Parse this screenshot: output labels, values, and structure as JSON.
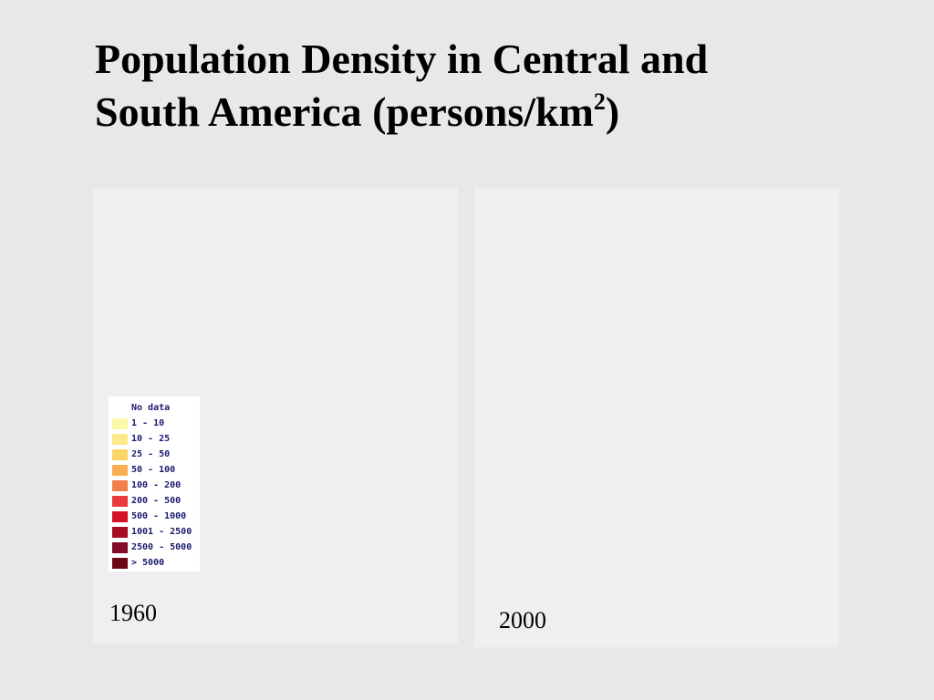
{
  "title": {
    "line1": "Population Density in Central and",
    "line2_prefix": "South America (persons/km",
    "superscript": "2",
    "line2_suffix": ")"
  },
  "panels": [
    {
      "year": "1960"
    },
    {
      "year": "2000"
    }
  ],
  "legend": {
    "items": [
      {
        "label": "No data",
        "color": "#ffffff"
      },
      {
        "label": "1 - 10",
        "color": "#fdf7a8"
      },
      {
        "label": "10 - 25",
        "color": "#fde98a"
      },
      {
        "label": "25 - 50",
        "color": "#fdd565"
      },
      {
        "label": "50 - 100",
        "color": "#f9ae52"
      },
      {
        "label": "100 - 200",
        "color": "#f27f4a"
      },
      {
        "label": "200 - 500",
        "color": "#ea3c3c"
      },
      {
        "label": "500 - 1000",
        "color": "#d41426"
      },
      {
        "label": "1001 - 2500",
        "color": "#a90f22"
      },
      {
        "label": "2500 - 5000",
        "color": "#820c2a"
      },
      {
        "label": "> 5000",
        "color": "#6b0a14"
      }
    ]
  }
}
